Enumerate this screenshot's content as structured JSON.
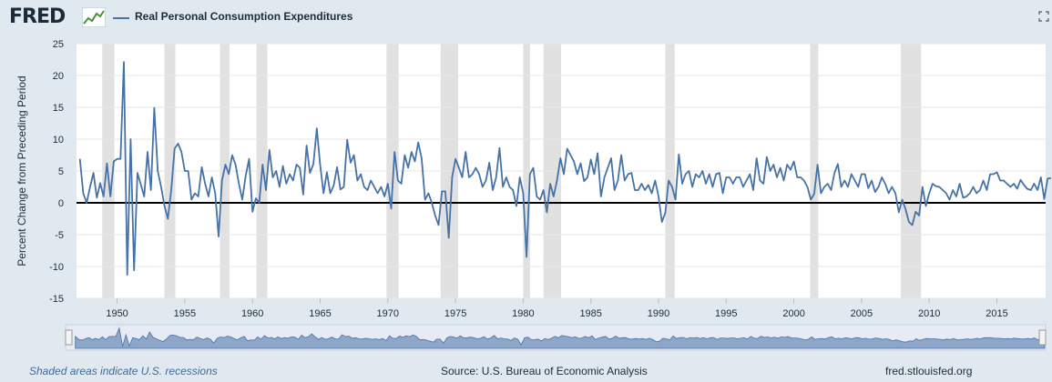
{
  "header": {
    "logo": "FRED",
    "logo_icon": "fred-chart-icon",
    "series_title": "Real Personal Consumption Expenditures",
    "fullscreen_icon": "fullscreen-icon"
  },
  "footer": {
    "recessions_note": "Shaded areas indicate U.S. recessions",
    "source": "Source: U.S. Bureau of Economic Analysis",
    "site": "fred.stlouisfed.org"
  },
  "colors": {
    "series": "#4572a7",
    "recession": "#e1e1e1",
    "background": "#e1e9f0"
  },
  "chart_data": {
    "type": "line",
    "title": "",
    "xlabel": "",
    "ylabel": "Percent Change from Preceding Period",
    "xlim": [
      1947.0,
      2018.6
    ],
    "ylim": [
      -15,
      25
    ],
    "yticks": [
      -15,
      -10,
      -5,
      0,
      5,
      10,
      15,
      20,
      25
    ],
    "xticks": [
      "1950",
      "1955",
      "1960",
      "1965",
      "1970",
      "1975",
      "1980",
      "1985",
      "1990",
      "1995",
      "2000",
      "2005",
      "2010",
      "2015"
    ],
    "grid": true,
    "legend": "top-left",
    "zero_line": true,
    "recessions": [
      [
        1948.9,
        1949.8
      ],
      [
        1953.5,
        1954.3
      ],
      [
        1957.6,
        1958.3
      ],
      [
        1960.3,
        1961.1
      ],
      [
        1969.9,
        1970.8
      ],
      [
        1973.9,
        1975.2
      ],
      [
        1980.0,
        1980.5
      ],
      [
        1981.5,
        1982.8
      ],
      [
        1990.5,
        1991.2
      ],
      [
        2001.2,
        2001.8
      ],
      [
        2007.9,
        2009.4
      ]
    ],
    "series": [
      {
        "name": "Real Personal Consumption Expenditures",
        "x_start": 1947.25,
        "x_step": 0.25,
        "values": [
          6.9,
          1.5,
          0,
          2.5,
          4.7,
          0.8,
          3.1,
          1,
          6.2,
          1,
          6.5,
          6.9,
          6.9,
          22.1,
          -11.3,
          10,
          -10.6,
          4.7,
          2.9,
          1,
          8,
          2,
          14.9,
          5,
          2.5,
          -0.5,
          -2.5,
          2,
          8.5,
          9.3,
          8,
          5,
          5,
          0.5,
          1.5,
          1,
          5.6,
          3,
          1,
          4,
          1.5,
          -5.3,
          3.5,
          6,
          4.5,
          7.5,
          6,
          3,
          0.5,
          4.3,
          6.9,
          -1.4,
          0.7,
          0,
          6,
          2,
          8.3,
          4,
          5,
          2.5,
          5.8,
          3,
          4.5,
          3.5,
          6,
          5.5,
          1.3,
          9,
          4.7,
          6.1,
          11.7,
          6,
          1.5,
          4.8,
          1.5,
          2.7,
          5.6,
          2.1,
          2.5,
          9.9,
          6.3,
          7.5,
          3.5,
          4.5,
          2.5,
          2,
          3.5,
          2.5,
          1.5,
          2.5,
          1,
          3,
          -0.9,
          8,
          3.5,
          3,
          7.5,
          5.5,
          8,
          6.5,
          9.5,
          7,
          0.5,
          1.5,
          0,
          -2,
          -3.5,
          1.8,
          1.8,
          -5.5,
          4,
          6.9,
          5.5,
          4,
          8,
          4,
          4.5,
          5.5,
          4.5,
          2.5,
          3.5,
          6.3,
          2,
          4,
          8.6,
          2.5,
          4,
          2.5,
          2,
          -0.5,
          4,
          1.5,
          -8.5,
          4.5,
          5.5,
          1,
          0.5,
          2,
          -1.5,
          3,
          1,
          3.5,
          7,
          4.5,
          8.5,
          7.5,
          6.5,
          4.5,
          6.2,
          3.4,
          4,
          6.8,
          4.5,
          7.8,
          1,
          4,
          5.5,
          7,
          2,
          3.5,
          7.5,
          3.5,
          4.5,
          4.7,
          2,
          2,
          3,
          2,
          2.8,
          1.5,
          3.5,
          1,
          -3,
          -1.6,
          3.5,
          2.5,
          0.5,
          7.6,
          3,
          4.5,
          5,
          2.5,
          4.5,
          4,
          5,
          3,
          4.5,
          2.5,
          4.5,
          4.7,
          1.5,
          4,
          4,
          3,
          4,
          4,
          2.5,
          3.5,
          4.5,
          2,
          7,
          3.5,
          3,
          7.2,
          5,
          6,
          4,
          5.5,
          3.5,
          6,
          5.2,
          6.5,
          4,
          4,
          3.5,
          2.5,
          0.5,
          1.4,
          6,
          1.5,
          2.5,
          3,
          2,
          4.7,
          6.1,
          2.5,
          3.5,
          2.5,
          4.5,
          3.5,
          2.5,
          4.5,
          4.5,
          2.3,
          3.5,
          1.7,
          2.5,
          4,
          3,
          1.5,
          2.5,
          1.5,
          -1.5,
          0.5,
          -1,
          -3,
          -3.5,
          -1.4,
          -2,
          2.5,
          -0.5,
          1.5,
          3,
          2.6,
          2.5,
          2,
          1.5,
          0.5,
          2,
          1,
          3,
          0.8,
          1,
          1.5,
          2.5,
          1.5,
          2,
          3.5,
          2,
          4.5,
          4.5,
          4.8,
          3.5,
          3.5,
          3,
          2.5,
          3,
          2.2,
          3.6,
          2.8,
          2.2,
          2,
          3,
          2,
          4,
          0.6,
          3.8,
          3.9
        ]
      }
    ]
  }
}
